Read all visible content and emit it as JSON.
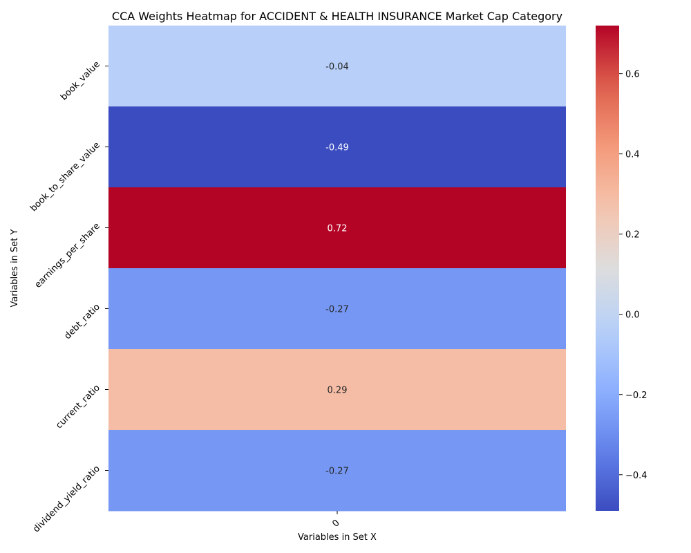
{
  "chart_data": {
    "type": "heatmap",
    "title": "CCA Weights Heatmap for ACCIDENT & HEALTH INSURANCE Market Cap Category",
    "xlabel": "Variables in Set X",
    "ylabel": "Variables in Set Y",
    "x_categories": [
      "0"
    ],
    "y_categories": [
      "book_value",
      "book_to_share_value",
      "earnings_per_share",
      "debt_ratio",
      "current_ratio",
      "dividend_yield_ratio"
    ],
    "values": [
      [
        -0.04
      ],
      [
        -0.49
      ],
      [
        0.72
      ],
      [
        -0.27
      ],
      [
        0.29
      ],
      [
        -0.27
      ]
    ],
    "annotations": [
      "-0.04",
      "-0.49",
      "0.72",
      "-0.27",
      "0.29",
      "-0.27"
    ],
    "colormap": "coolwarm",
    "vmin": -0.49,
    "vmax": 0.72,
    "colorbar_ticks": [
      0.6,
      0.4,
      0.2,
      0.0,
      -0.2,
      -0.4
    ],
    "colorbar_tick_labels": [
      "0.6",
      "0.4",
      "0.2",
      "0.0",
      "−0.2",
      "−0.4"
    ]
  }
}
